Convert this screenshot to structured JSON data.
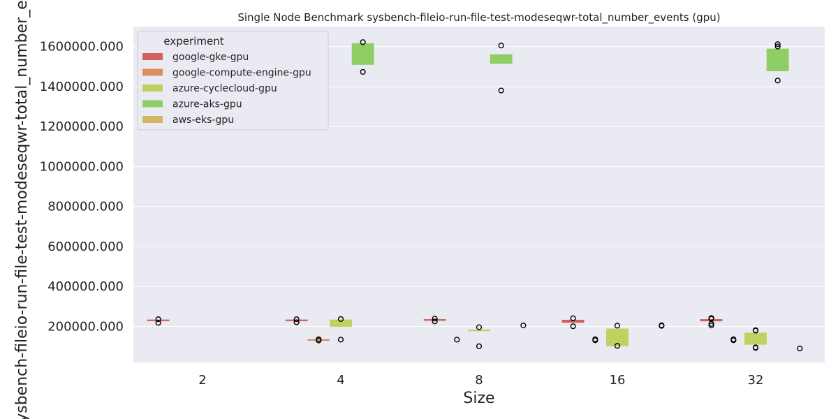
{
  "chart_data": {
    "type": "box",
    "title": "Single Node Benchmark sysbench-fileio-run-file-test-modeseqwr-total_number_events (gpu)",
    "xlabel": "Size",
    "ylabel": "sysbench-fileio-run-file-test-modeseqwr-total_number_events",
    "ylim": [
      20000,
      1700000
    ],
    "yticks": [
      "200000.000",
      "400000.000",
      "600000.000",
      "800000.000",
      "1000000.000",
      "1200000.000",
      "1400000.000",
      "1600000.000"
    ],
    "yticks_values": [
      200000,
      400000,
      600000,
      800000,
      1000000,
      1200000,
      1400000,
      1600000
    ],
    "categories": [
      "2",
      "4",
      "8",
      "16",
      "32"
    ],
    "legend": {
      "title": "experiment",
      "placement": "top-left"
    },
    "series": [
      {
        "name": "google-gke-gpu",
        "color": "#d1615d",
        "boxes": [
          {
            "category": "2",
            "q1": 229000,
            "median": 231000,
            "q3": 233000,
            "outliers": [
              218000,
              236000
            ]
          },
          {
            "category": "4",
            "q1": 229000,
            "median": 231000,
            "q3": 233000,
            "outliers": [
              221000,
              236000
            ]
          },
          {
            "category": "8",
            "q1": 230000,
            "median": 232000,
            "q3": 235000,
            "outliers": [
              225000,
              239000
            ]
          },
          {
            "category": "16",
            "q1": 220000,
            "median": 226000,
            "q3": 232000,
            "outliers": [
              201000,
              241000
            ]
          },
          {
            "category": "32",
            "q1": 227000,
            "median": 231000,
            "q3": 235000,
            "outliers": [
              205000,
              213000,
              238000,
              242000
            ]
          }
        ]
      },
      {
        "name": "google-compute-engine-gpu",
        "color": "#d8905f",
        "boxes": [
          {
            "category": "4",
            "q1": 133000,
            "median": 134000,
            "q3": 135000,
            "outliers": [
              130000,
              136000
            ]
          },
          {
            "category": "8",
            "q1": null,
            "median": null,
            "q3": null,
            "outliers": [
              134000
            ]
          },
          {
            "category": "16",
            "q1": null,
            "median": null,
            "q3": null,
            "outliers": [
              131000,
              136000
            ]
          },
          {
            "category": "32",
            "q1": null,
            "median": null,
            "q3": null,
            "outliers": [
              131000,
              136000
            ]
          }
        ]
      },
      {
        "name": "azure-cyclecloud-gpu",
        "color": "#bdd25f",
        "boxes": [
          {
            "category": "4",
            "q1": 200000,
            "median": 215000,
            "q3": 233000,
            "outliers": [
              134000,
              237000
            ]
          },
          {
            "category": "8",
            "q1": 181000,
            "median": 182000,
            "q3": 183000,
            "outliers": [
              101000,
              196000
            ]
          },
          {
            "category": "16",
            "q1": 103000,
            "median": 145000,
            "q3": 188000,
            "outliers": [
              103000,
              204000
            ]
          },
          {
            "category": "32",
            "q1": 110000,
            "median": 140000,
            "q3": 167000,
            "outliers": [
              93000,
              95000,
              179000,
              181000
            ]
          }
        ]
      },
      {
        "name": "azure-aks-gpu",
        "color": "#8fce64",
        "boxes": [
          {
            "category": "4",
            "q1": 1510000,
            "median": 1560000,
            "q3": 1615000,
            "outliers": [
              1473000,
              1622000
            ]
          },
          {
            "category": "8",
            "q1": 1515000,
            "median": 1540000,
            "q3": 1560000,
            "outliers": [
              1380000,
              1605000
            ]
          },
          {
            "category": "32",
            "q1": 1478000,
            "median": 1540000,
            "q3": 1588000,
            "outliers": [
              1430000,
              1600000,
              1612000
            ]
          }
        ]
      },
      {
        "name": "aws-eks-gpu",
        "color": "#d4b861",
        "boxes": [
          {
            "category": "8",
            "q1": null,
            "median": null,
            "q3": null,
            "outliers": [
              205000
            ]
          },
          {
            "category": "16",
            "q1": null,
            "median": null,
            "q3": null,
            "outliers": [
              203000,
              206000
            ]
          },
          {
            "category": "32",
            "q1": null,
            "median": null,
            "q3": null,
            "outliers": [
              90000
            ]
          }
        ]
      }
    ]
  }
}
